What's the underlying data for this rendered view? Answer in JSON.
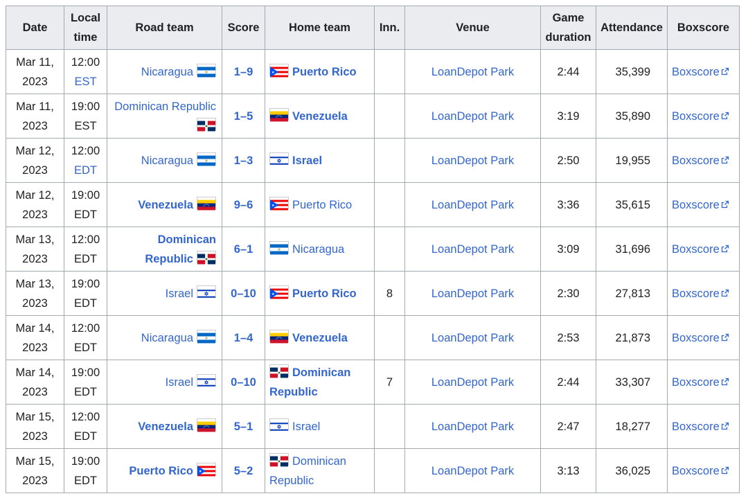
{
  "headers": [
    "Date",
    "Local time",
    "Road team",
    "Score",
    "Home team",
    "Inn.",
    "Venue",
    "Game duration",
    "Attendance",
    "Boxscore"
  ],
  "colors": {
    "link": "#3366cc",
    "header_bg": "#eaecf0",
    "border": "#a2a9b1"
  },
  "rows": [
    {
      "date": "Mar 11, 2023",
      "time": "12:00",
      "tz": "EST",
      "tz_link": true,
      "road": "Nicaragua",
      "road_flag": "nicaragua",
      "road_win": false,
      "score": "1–9",
      "home": "Puerto Rico",
      "home_flag": "puerto-rico",
      "home_win": true,
      "inn": "",
      "venue": "LoanDepot Park",
      "duration": "2:44",
      "attendance": "35,399",
      "boxscore": "Boxscore"
    },
    {
      "date": "Mar 11, 2023",
      "time": "19:00",
      "tz": "EST",
      "tz_link": false,
      "road": "Dominican Republic",
      "road_flag": "dominican-republic",
      "road_win": false,
      "score": "1–5",
      "home": "Venezuela",
      "home_flag": "venezuela",
      "home_win": true,
      "inn": "",
      "venue": "LoanDepot Park",
      "duration": "3:19",
      "attendance": "35,890",
      "boxscore": "Boxscore"
    },
    {
      "date": "Mar 12, 2023",
      "time": "12:00",
      "tz": "EDT",
      "tz_link": true,
      "road": "Nicaragua",
      "road_flag": "nicaragua",
      "road_win": false,
      "score": "1–3",
      "home": "Israel",
      "home_flag": "israel",
      "home_win": true,
      "inn": "",
      "venue": "LoanDepot Park",
      "duration": "2:50",
      "attendance": "19,955",
      "boxscore": "Boxscore"
    },
    {
      "date": "Mar 12, 2023",
      "time": "19:00",
      "tz": "EDT",
      "tz_link": false,
      "road": "Venezuela",
      "road_flag": "venezuela",
      "road_win": true,
      "score": "9–6",
      "home": "Puerto Rico",
      "home_flag": "puerto-rico",
      "home_win": false,
      "inn": "",
      "venue": "LoanDepot Park",
      "duration": "3:36",
      "attendance": "35,615",
      "boxscore": "Boxscore"
    },
    {
      "date": "Mar 13, 2023",
      "time": "12:00",
      "tz": "EDT",
      "tz_link": false,
      "road": "Dominican Republic",
      "road_flag": "dominican-republic",
      "road_win": true,
      "score": "6–1",
      "home": "Nicaragua",
      "home_flag": "nicaragua",
      "home_win": false,
      "inn": "",
      "venue": "LoanDepot Park",
      "duration": "3:09",
      "attendance": "31,696",
      "boxscore": "Boxscore"
    },
    {
      "date": "Mar 13, 2023",
      "time": "19:00",
      "tz": "EDT",
      "tz_link": false,
      "road": "Israel",
      "road_flag": "israel",
      "road_win": false,
      "score": "0–10",
      "home": "Puerto Rico",
      "home_flag": "puerto-rico",
      "home_win": true,
      "inn": "8",
      "venue": "LoanDepot Park",
      "duration": "2:30",
      "attendance": "27,813",
      "boxscore": "Boxscore"
    },
    {
      "date": "Mar 14, 2023",
      "time": "12:00",
      "tz": "EDT",
      "tz_link": false,
      "road": "Nicaragua",
      "road_flag": "nicaragua",
      "road_win": false,
      "score": "1–4",
      "home": "Venezuela",
      "home_flag": "venezuela",
      "home_win": true,
      "inn": "",
      "venue": "LoanDepot Park",
      "duration": "2:53",
      "attendance": "21,873",
      "boxscore": "Boxscore"
    },
    {
      "date": "Mar 14, 2023",
      "time": "19:00",
      "tz": "EDT",
      "tz_link": false,
      "road": "Israel",
      "road_flag": "israel",
      "road_win": false,
      "score": "0–10",
      "home": "Dominican Republic",
      "home_flag": "dominican-republic",
      "home_win": true,
      "inn": "7",
      "venue": "LoanDepot Park",
      "duration": "2:44",
      "attendance": "33,307",
      "boxscore": "Boxscore"
    },
    {
      "date": "Mar 15, 2023",
      "time": "12:00",
      "tz": "EDT",
      "tz_link": false,
      "road": "Venezuela",
      "road_flag": "venezuela",
      "road_win": true,
      "score": "5–1",
      "home": "Israel",
      "home_flag": "israel",
      "home_win": false,
      "inn": "",
      "venue": "LoanDepot Park",
      "duration": "2:47",
      "attendance": "18,277",
      "boxscore": "Boxscore"
    },
    {
      "date": "Mar 15, 2023",
      "time": "19:00",
      "tz": "EDT",
      "tz_link": false,
      "road": "Puerto Rico",
      "road_flag": "puerto-rico",
      "road_win": true,
      "score": "5–2",
      "home": "Dominican Republic",
      "home_flag": "dominican-republic",
      "home_win": false,
      "inn": "",
      "venue": "LoanDepot Park",
      "duration": "3:13",
      "attendance": "36,025",
      "boxscore": "Boxscore"
    }
  ]
}
